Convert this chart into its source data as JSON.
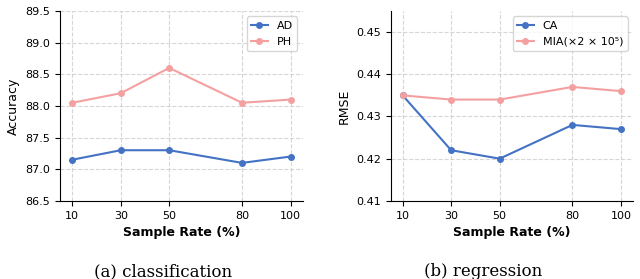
{
  "sample_rates": [
    10,
    30,
    50,
    80,
    100
  ],
  "left": {
    "AD": [
      87.15,
      87.3,
      87.3,
      87.1,
      87.2
    ],
    "PH": [
      88.05,
      88.2,
      88.6,
      88.05,
      88.1
    ],
    "ylabel": "Accuracy",
    "xlabel": "Sample Rate (%)",
    "ylim": [
      86.5,
      89.5
    ],
    "yticks": [
      86.5,
      87.0,
      87.5,
      88.0,
      88.5,
      89.0,
      89.5
    ],
    "caption": "(a) classification",
    "legend_labels": [
      "AD",
      "PH"
    ]
  },
  "right": {
    "CA": [
      0.435,
      0.422,
      0.42,
      0.428,
      0.427
    ],
    "MIA": [
      0.435,
      0.434,
      0.434,
      0.437,
      0.436
    ],
    "ylabel": "RMSE",
    "xlabel": "Sample Rate (%)",
    "ylim": [
      0.41,
      0.455
    ],
    "yticks": [
      0.41,
      0.42,
      0.43,
      0.44,
      0.45
    ],
    "caption": "(b) regression",
    "legend_labels": [
      "CA",
      "MIA(×2 × 10⁵)"
    ]
  },
  "blue_color": "#4472c4",
  "pink_color": "#f4a0a0",
  "marker": "o",
  "markersize": 4,
  "linewidth": 1.5,
  "grid_color": "#cccccc",
  "grid_linestyle": "--",
  "grid_alpha": 0.8,
  "caption_fontsize": 12,
  "tick_fontsize": 8,
  "label_fontsize": 9,
  "legend_fontsize": 8
}
